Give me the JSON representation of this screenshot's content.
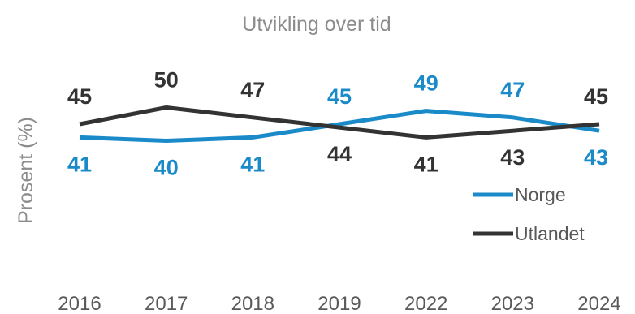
{
  "chart_data": {
    "type": "line",
    "title": "Utvikling over tid",
    "xlabel": "",
    "ylabel": "Prosent (%)",
    "x": [
      "2016",
      "2017",
      "2018",
      "2019",
      "2022",
      "2023",
      "2024"
    ],
    "ylim": [
      25,
      55
    ],
    "grid": false,
    "legend_position": "bottom-right",
    "series": [
      {
        "name": "Norge",
        "color": "#1b8ac8",
        "values": [
          41,
          40,
          41,
          45,
          49,
          47,
          43
        ]
      },
      {
        "name": "Utlandet",
        "color": "#333333",
        "values": [
          45,
          50,
          47,
          44,
          41,
          43,
          45
        ]
      }
    ]
  }
}
